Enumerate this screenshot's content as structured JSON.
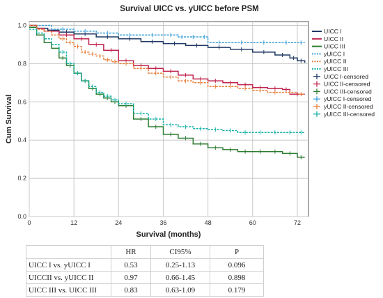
{
  "chart_data": {
    "type": "line",
    "title": "Survival UICC vs. yUICC before PSM",
    "xlabel": "Survival (months)",
    "ylabel": "Cum Survival",
    "xlim": [
      0,
      75
    ],
    "ylim": [
      0,
      1.02
    ],
    "xticks": [
      0,
      12,
      24,
      36,
      48,
      60,
      72
    ],
    "yticks": [
      0.0,
      0.2,
      0.4,
      0.6,
      0.8,
      1.0
    ],
    "ytick_labels": [
      "0.0",
      "0.2",
      "0.4",
      "0.6",
      "0.8",
      "1.0"
    ],
    "grid": true,
    "legend_position": "right",
    "series": [
      {
        "name": "UICC I",
        "color": "#1f3864",
        "style": "solid",
        "x": [
          0,
          2,
          5,
          8,
          12,
          18,
          24,
          30,
          36,
          42,
          48,
          54,
          60,
          66,
          70,
          72,
          74
        ],
        "y": [
          1.0,
          0.985,
          0.975,
          0.965,
          0.955,
          0.94,
          0.93,
          0.915,
          0.905,
          0.895,
          0.885,
          0.875,
          0.86,
          0.845,
          0.83,
          0.815,
          0.805
        ]
      },
      {
        "name": "UICC II",
        "color": "#c0244f",
        "style": "solid",
        "x": [
          0,
          2,
          4,
          8,
          12,
          16,
          20,
          24,
          28,
          32,
          36,
          40,
          44,
          48,
          52,
          56,
          60,
          64,
          68,
          70,
          74
        ],
        "y": [
          1.0,
          0.985,
          0.97,
          0.95,
          0.93,
          0.9,
          0.87,
          0.815,
          0.79,
          0.775,
          0.76,
          0.74,
          0.72,
          0.71,
          0.7,
          0.69,
          0.675,
          0.67,
          0.665,
          0.64,
          0.64
        ]
      },
      {
        "name": "UICC III",
        "color": "#2e7d32",
        "style": "solid",
        "x": [
          0,
          2,
          4,
          6,
          8,
          10,
          12,
          14,
          16,
          18,
          20,
          22,
          24,
          28,
          32,
          36,
          40,
          44,
          48,
          52,
          56,
          60,
          64,
          68,
          72,
          74
        ],
        "y": [
          0.99,
          0.95,
          0.91,
          0.88,
          0.83,
          0.79,
          0.75,
          0.71,
          0.67,
          0.64,
          0.62,
          0.6,
          0.58,
          0.51,
          0.47,
          0.43,
          0.41,
          0.38,
          0.36,
          0.35,
          0.34,
          0.34,
          0.34,
          0.33,
          0.31,
          0.31
        ]
      },
      {
        "name": "yUICC I",
        "color": "#3aa0d8",
        "style": "dashed",
        "x": [
          0,
          6,
          12,
          18,
          24,
          30,
          36,
          40,
          42,
          46,
          48,
          54,
          60,
          66,
          72,
          74
        ],
        "y": [
          1.0,
          0.98,
          0.97,
          0.96,
          0.95,
          0.95,
          0.95,
          0.94,
          0.94,
          0.94,
          0.91,
          0.91,
          0.91,
          0.91,
          0.91,
          0.91
        ]
      },
      {
        "name": "yUICC II",
        "color": "#e67e3a",
        "style": "dashed",
        "x": [
          0,
          2,
          4,
          6,
          8,
          10,
          12,
          14,
          16,
          18,
          20,
          22,
          24,
          28,
          32,
          36,
          40,
          44,
          48,
          52,
          56,
          60,
          64,
          68,
          72,
          74
        ],
        "y": [
          1.0,
          0.98,
          0.97,
          0.95,
          0.93,
          0.91,
          0.89,
          0.86,
          0.85,
          0.84,
          0.82,
          0.81,
          0.8,
          0.775,
          0.75,
          0.73,
          0.71,
          0.7,
          0.68,
          0.68,
          0.67,
          0.66,
          0.65,
          0.65,
          0.64,
          0.64
        ]
      },
      {
        "name": "yUICC III",
        "color": "#18b2a8",
        "style": "dashed",
        "x": [
          0,
          2,
          4,
          6,
          8,
          10,
          12,
          14,
          16,
          18,
          20,
          22,
          24,
          28,
          32,
          36,
          40,
          44,
          48,
          52,
          56,
          60,
          64,
          68,
          72,
          74
        ],
        "y": [
          0.98,
          0.96,
          0.93,
          0.9,
          0.86,
          0.8,
          0.75,
          0.71,
          0.68,
          0.65,
          0.63,
          0.61,
          0.59,
          0.54,
          0.51,
          0.48,
          0.47,
          0.46,
          0.455,
          0.45,
          0.44,
          0.44,
          0.44,
          0.44,
          0.44,
          0.44
        ]
      }
    ],
    "legend": [
      {
        "label": "UICC I",
        "color": "#1f3864",
        "kind": "line"
      },
      {
        "label": "UICC II",
        "color": "#c0244f",
        "kind": "line"
      },
      {
        "label": "UICC III",
        "color": "#2e7d32",
        "kind": "line"
      },
      {
        "label": "yUICC I",
        "color": "#3aa0d8",
        "kind": "dash"
      },
      {
        "label": "yUICC II",
        "color": "#e67e3a",
        "kind": "dash"
      },
      {
        "label": "yUICC III",
        "color": "#18b2a8",
        "kind": "dash"
      },
      {
        "label": "UICC I-censored",
        "color": "#1f3864",
        "kind": "plus"
      },
      {
        "label": "UICC II-censored",
        "color": "#c0244f",
        "kind": "plus"
      },
      {
        "label": "UICC III-censored",
        "color": "#2e7d32",
        "kind": "plus"
      },
      {
        "label": "yUICC I-censored",
        "color": "#3aa0d8",
        "kind": "plus"
      },
      {
        "label": "yUICC II-censored",
        "color": "#e67e3a",
        "kind": "plus"
      },
      {
        "label": "yUICC III-censored",
        "color": "#18b2a8",
        "kind": "plus"
      }
    ]
  },
  "stats_table": {
    "headers": [
      "",
      "HR",
      "CI95%",
      "P"
    ],
    "rows": [
      {
        "comparison": "UICC I vs. yUICC I",
        "hr": "0.53",
        "ci": "0.25-1.13",
        "p": "0.096"
      },
      {
        "comparison": "UICCII vs. yUICC II",
        "hr": "0.97",
        "ci": "0.66-1.45",
        "p": "0.898"
      },
      {
        "comparison": "UICC III vs. UICC III",
        "hr": "0.83",
        "ci": "0.63-1.09",
        "p": "0.179"
      }
    ]
  }
}
